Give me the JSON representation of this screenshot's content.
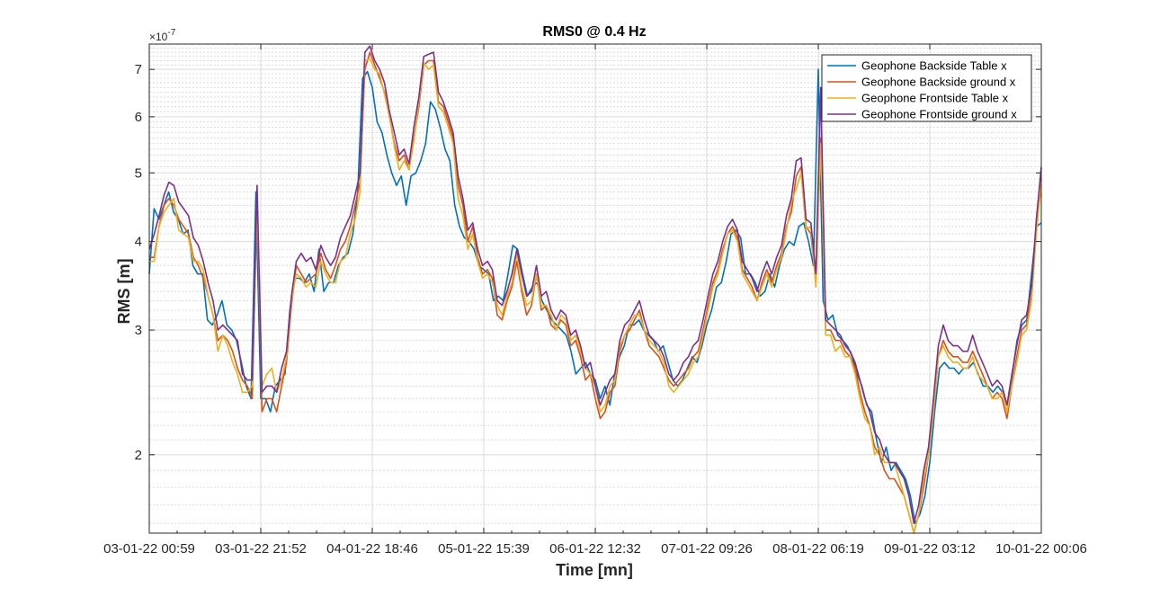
{
  "chart_data": {
    "type": "line",
    "title": "RMS0 @ 0.4 Hz",
    "xlabel": "Time [mn]",
    "ylabel": "RMS [m]",
    "y_exponent_label": "×10",
    "y_exponent_power": "-7",
    "y_scale": "log",
    "ylim": [
      1.55,
      7.6
    ],
    "y_ticks": [
      2,
      3,
      4,
      5,
      6,
      7
    ],
    "y_tick_labels": [
      "2",
      "3",
      "4",
      "5",
      "6",
      "7"
    ],
    "x_tick_labels": [
      "03-01-22 00:59",
      "03-01-22 21:52",
      "04-01-22 18:46",
      "05-01-22 15:39",
      "06-01-22 12:32",
      "07-01-22 09:26",
      "08-01-22 06:19",
      "09-01-22 03:12",
      "10-01-22 00:06"
    ],
    "grid": true,
    "legend_position": "top-right",
    "sample_interval_hours": 1,
    "series": [
      {
        "name": "Geophone Backside Table x",
        "color": "#0072BD",
        "values": [
          3.6,
          4.45,
          4.3,
          4.5,
          4.7,
          4.4,
          4.3,
          4.1,
          4.15,
          3.7,
          3.6,
          3.6,
          3.1,
          3.05,
          3.15,
          3.3,
          3.05,
          3,
          2.9,
          2.7,
          2.5,
          2.4,
          4.7,
          2.4,
          2.4,
          2.3,
          2.5,
          2.55,
          2.6,
          3.2,
          3.55,
          3.55,
          3.5,
          3.6,
          3.4,
          3.9,
          3.4,
          3.5,
          3.5,
          3.7,
          3.8,
          3.85,
          4.1,
          4.7,
          6.8,
          6.95,
          6.6,
          5.9,
          5.7,
          5.3,
          5,
          4.8,
          4.95,
          4.5,
          4.95,
          5,
          5.2,
          5.5,
          6.3,
          6.15,
          5.8,
          5.4,
          5.2,
          4.5,
          4.2,
          4.05,
          4,
          3.9,
          3.7,
          3.65,
          3.6,
          3.3,
          3.35,
          3.3,
          3.6,
          3.95,
          3.9,
          3.6,
          3.35,
          3.45,
          3.5,
          3.3,
          3.2,
          3.1,
          3.05,
          3,
          2.95,
          2.8,
          2.6,
          2.65,
          2.7,
          2.6,
          2.55,
          2.4,
          2.5,
          2.35,
          2.6,
          2.75,
          2.85,
          3.05,
          3.05,
          3.1,
          3,
          2.95,
          2.9,
          2.8,
          2.85,
          2.7,
          2.55,
          2.5,
          2.55,
          2.65,
          2.75,
          2.7,
          2.85,
          3.05,
          3.2,
          3.45,
          3.5,
          3.75,
          4.1,
          4.15,
          4.05,
          3.6,
          3.6,
          3.5,
          3.35,
          3.4,
          3.6,
          3.45,
          3.7,
          3.9,
          4,
          3.95,
          4.2,
          4.25,
          4.0,
          3.7,
          7.0,
          3.3,
          3.1,
          3.15,
          2.95,
          2.9,
          2.85,
          2.75,
          2.6,
          2.5,
          2.35,
          2.3,
          2.1,
          1.95,
          2.05,
          1.9,
          1.95,
          1.9,
          1.85,
          1.75,
          1.6,
          1.65,
          1.75,
          1.95,
          2.3,
          2.65,
          2.7,
          2.65,
          2.65,
          2.6,
          2.65,
          2.65,
          2.7,
          2.6,
          2.5,
          2.5,
          2.45,
          2.5,
          2.45,
          2.35,
          2.6,
          2.9,
          3.05,
          3.1,
          3.6,
          4.2,
          4.25
        ]
      },
      {
        "name": "Geophone Backside ground x",
        "color": "#D95319",
        "values": [
          3.8,
          3.8,
          4.2,
          4.5,
          4.6,
          4.5,
          4.3,
          4.2,
          4.1,
          3.8,
          3.7,
          3.55,
          3.35,
          3.15,
          2.9,
          2.95,
          2.9,
          2.8,
          2.65,
          2.55,
          2.5,
          2.4,
          4.6,
          2.3,
          2.4,
          2.4,
          2.3,
          2.5,
          2.7,
          3.25,
          3.7,
          3.6,
          3.5,
          3.55,
          3.6,
          3.85,
          3.65,
          3.55,
          3.7,
          3.9,
          4.0,
          4.2,
          4.5,
          4.85,
          7.0,
          7.4,
          7.1,
          6.8,
          6.5,
          6.0,
          5.5,
          5.2,
          5.3,
          5.05,
          5.6,
          6.2,
          7.1,
          7.2,
          7.2,
          6.3,
          6.2,
          5.9,
          5.6,
          4.8,
          4.5,
          4.0,
          4.2,
          3.8,
          3.6,
          3.65,
          3.55,
          3.15,
          3.1,
          3.3,
          3.45,
          3.75,
          3.4,
          3.15,
          3.25,
          3.6,
          3.2,
          3.25,
          3.05,
          3.0,
          3.1,
          3.05,
          2.85,
          2.9,
          2.75,
          2.55,
          2.6,
          2.4,
          2.25,
          2.3,
          2.45,
          2.5,
          2.8,
          2.95,
          3.0,
          3.1,
          3.2,
          3.0,
          2.85,
          2.8,
          2.75,
          2.65,
          2.55,
          2.5,
          2.55,
          2.6,
          2.65,
          2.75,
          2.8,
          3.0,
          3.25,
          3.5,
          3.65,
          3.9,
          4.1,
          4.2,
          4.05,
          3.65,
          3.55,
          3.45,
          3.3,
          3.5,
          3.65,
          3.5,
          3.7,
          3.85,
          4.2,
          4.4,
          4.95,
          5.1,
          4.2,
          4.1,
          3.5,
          5.6,
          3.0,
          3.0,
          2.9,
          2.9,
          2.8,
          2.75,
          2.65,
          2.45,
          2.3,
          2.2,
          2.05,
          2.0,
          1.9,
          1.85,
          1.85,
          1.8,
          1.75,
          1.65,
          1.55,
          1.65,
          1.8,
          2.0,
          2.3,
          2.75,
          2.9,
          2.8,
          2.75,
          2.75,
          2.7,
          2.7,
          2.8,
          2.7,
          2.6,
          2.5,
          2.4,
          2.45,
          2.4,
          2.25,
          2.5,
          2.75,
          3.0,
          3.05,
          3.35,
          4.2,
          4.8
        ]
      },
      {
        "name": "Geophone Frontside Table x",
        "color": "#EDB120",
        "values": [
          3.75,
          3.75,
          4.2,
          4.4,
          4.5,
          4.6,
          4.15,
          4.1,
          4.05,
          3.75,
          3.75,
          3.65,
          3.35,
          3.15,
          2.8,
          2.95,
          2.85,
          2.7,
          2.6,
          2.45,
          2.45,
          2.5,
          4.5,
          2.5,
          2.6,
          2.65,
          2.45,
          2.55,
          2.75,
          3.3,
          3.6,
          3.55,
          3.45,
          3.5,
          3.45,
          3.75,
          3.6,
          3.5,
          3.5,
          3.75,
          3.8,
          4.1,
          4.3,
          4.7,
          7.2,
          7.25,
          7.0,
          6.9,
          6.45,
          6.0,
          5.45,
          5.05,
          5.2,
          5.05,
          5.55,
          6.3,
          7.15,
          7.0,
          7.1,
          6.2,
          6.1,
          5.8,
          5.5,
          4.6,
          4.35,
          3.9,
          4.1,
          3.75,
          3.55,
          3.6,
          3.5,
          3.25,
          3.15,
          3.35,
          3.5,
          3.85,
          3.45,
          3.25,
          3.3,
          3.6,
          3.25,
          3.25,
          3.15,
          3.0,
          3.15,
          3.1,
          2.9,
          2.95,
          2.8,
          2.65,
          2.6,
          2.5,
          2.3,
          2.35,
          2.5,
          2.55,
          2.85,
          2.95,
          3.05,
          3.15,
          3.15,
          3.0,
          2.9,
          2.85,
          2.8,
          2.7,
          2.5,
          2.45,
          2.5,
          2.55,
          2.6,
          2.7,
          2.75,
          2.95,
          3.2,
          3.45,
          3.6,
          3.85,
          4.1,
          4.15,
          4.0,
          3.6,
          3.5,
          3.4,
          3.3,
          3.45,
          3.6,
          3.45,
          3.65,
          3.8,
          4.15,
          4.55,
          4.75,
          5.0,
          4.15,
          4.2,
          3.45,
          5.5,
          2.95,
          2.95,
          2.8,
          2.85,
          2.75,
          2.75,
          2.6,
          2.4,
          2.25,
          2.2,
          2.0,
          2.05,
          1.95,
          1.95,
          1.95,
          1.85,
          1.75,
          1.65,
          1.55,
          1.65,
          1.85,
          2.0,
          2.3,
          2.75,
          2.85,
          2.75,
          2.7,
          2.7,
          2.65,
          2.65,
          2.75,
          2.6,
          2.55,
          2.5,
          2.4,
          2.4,
          2.45,
          2.3,
          2.5,
          2.7,
          2.95,
          3.0,
          3.3,
          4.1,
          4.9
        ]
      },
      {
        "name": "Geophone Frontside ground x",
        "color": "#7E2F8E",
        "values": [
          3.9,
          4.1,
          4.35,
          4.65,
          4.85,
          4.8,
          4.55,
          4.45,
          4.35,
          4.05,
          3.95,
          3.75,
          3.5,
          3.3,
          3.0,
          3.05,
          3.0,
          2.95,
          2.9,
          2.6,
          2.55,
          2.55,
          4.8,
          2.45,
          2.5,
          2.5,
          2.45,
          2.65,
          2.8,
          3.35,
          3.75,
          3.85,
          3.75,
          3.8,
          3.65,
          3.95,
          3.8,
          3.7,
          3.8,
          4.05,
          4.2,
          4.35,
          4.65,
          5.0,
          7.4,
          7.55,
          7.2,
          7.0,
          6.7,
          6.1,
          5.7,
          5.3,
          5.4,
          5.15,
          5.8,
          6.4,
          7.3,
          7.35,
          7.4,
          6.5,
          6.3,
          6.0,
          5.7,
          4.95,
          4.6,
          4.15,
          4.25,
          3.9,
          3.7,
          3.75,
          3.65,
          3.3,
          3.25,
          3.4,
          3.6,
          3.9,
          3.6,
          3.35,
          3.4,
          3.7,
          3.35,
          3.4,
          3.2,
          3.1,
          3.2,
          3.15,
          2.95,
          3.0,
          2.85,
          2.65,
          2.7,
          2.5,
          2.35,
          2.45,
          2.55,
          2.6,
          2.9,
          3.05,
          3.1,
          3.2,
          3.3,
          3.1,
          2.95,
          2.9,
          2.85,
          2.75,
          2.6,
          2.55,
          2.6,
          2.7,
          2.75,
          2.85,
          2.9,
          3.1,
          3.35,
          3.6,
          3.75,
          4.0,
          4.2,
          4.3,
          4.15,
          3.75,
          3.65,
          3.55,
          3.4,
          3.6,
          3.75,
          3.6,
          3.8,
          3.95,
          4.35,
          4.6,
          5.2,
          5.25,
          4.3,
          4.25,
          3.6,
          6.6,
          3.1,
          3.05,
          3.0,
          2.95,
          2.85,
          2.8,
          2.7,
          2.55,
          2.4,
          2.3,
          2.15,
          2.1,
          2.0,
          1.95,
          1.95,
          1.9,
          1.85,
          1.75,
          1.6,
          1.7,
          1.9,
          2.05,
          2.4,
          2.85,
          3.05,
          2.9,
          2.85,
          2.85,
          2.8,
          2.8,
          2.95,
          2.8,
          2.7,
          2.6,
          2.5,
          2.55,
          2.5,
          2.35,
          2.6,
          2.85,
          3.1,
          3.15,
          3.45,
          4.3,
          5.1
        ]
      }
    ]
  }
}
